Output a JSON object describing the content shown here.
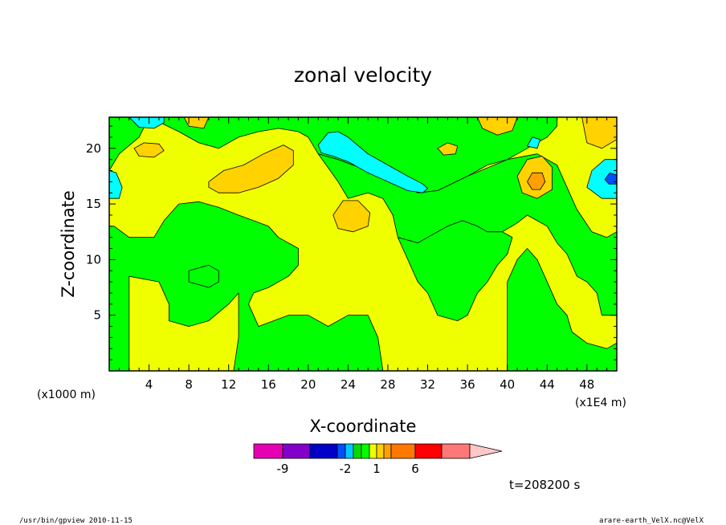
{
  "chart_data": {
    "type": "heatmap",
    "title": "zonal velocity",
    "xlabel": "X-coordinate",
    "ylabel": "Z-coordinate",
    "x_unit": "(x1E4 m)",
    "y_unit": "(x1000 m)",
    "xlim": [
      0,
      51
    ],
    "ylim": [
      0,
      22.8
    ],
    "x_ticks": [
      "4",
      "8",
      "12",
      "16",
      "20",
      "24",
      "28",
      "32",
      "36",
      "40",
      "44",
      "48"
    ],
    "y_ticks": [
      "5",
      "10",
      "15",
      "20"
    ],
    "x_tick_values": [
      4,
      8,
      12,
      16,
      20,
      24,
      28,
      32,
      36,
      40,
      44,
      48
    ],
    "y_tick_values": [
      5,
      10,
      15,
      20
    ],
    "time_label": "t=208200 s",
    "colorbar": {
      "labels": [
        "-9",
        "-2",
        "1",
        "6"
      ],
      "colors": [
        "#e600b4",
        "#8200c8",
        "#0000c8",
        "#0050ff",
        "#00c8ff",
        "#00dc00",
        "#00ff00",
        "#f0ff00",
        "#ffd200",
        "#ffa000",
        "#ff7800",
        "#ff0000",
        "#ff7878",
        "#ffc8c8"
      ]
    },
    "regions": [
      {
        "level": "yellow",
        "color": "#f0ff00",
        "points": [
          [
            0,
            0
          ],
          [
            51,
            0
          ],
          [
            51,
            22.8
          ],
          [
            0,
            22.8
          ]
        ]
      },
      {
        "level": "green",
        "color": "#00ff00",
        "points": [
          [
            2,
            8.5
          ],
          [
            5,
            8
          ],
          [
            6,
            6
          ],
          [
            6,
            4.5
          ],
          [
            8,
            4
          ],
          [
            10,
            4.5
          ],
          [
            12,
            6
          ],
          [
            13,
            7
          ],
          [
            13,
            3
          ],
          [
            12.5,
            0
          ],
          [
            27.5,
            0
          ],
          [
            27,
            3
          ],
          [
            26,
            5
          ],
          [
            24,
            5
          ],
          [
            22,
            4
          ],
          [
            20,
            5
          ],
          [
            18,
            5
          ],
          [
            15,
            4
          ],
          [
            14,
            6
          ],
          [
            14.5,
            7
          ],
          [
            16,
            7.5
          ],
          [
            18,
            8.5
          ],
          [
            19,
            9.5
          ],
          [
            19,
            11
          ],
          [
            17,
            12
          ],
          [
            16,
            13
          ],
          [
            13,
            14
          ],
          [
            11,
            14.7
          ],
          [
            9,
            15.2
          ],
          [
            7,
            15
          ],
          [
            5.5,
            13.5
          ],
          [
            4.5,
            12
          ],
          [
            2,
            12
          ],
          [
            0.5,
            13
          ],
          [
            0,
            13
          ],
          [
            0,
            18
          ],
          [
            1,
            19.5
          ],
          [
            3,
            21
          ],
          [
            4,
            22.8
          ],
          [
            0,
            22.8
          ],
          [
            0,
            0
          ],
          [
            2,
            0
          ]
        ]
      },
      {
        "level": "green",
        "color": "#00ff00",
        "points": [
          [
            4,
            22.8
          ],
          [
            7,
            21.5
          ],
          [
            9,
            20.5
          ],
          [
            11,
            20
          ],
          [
            13,
            21
          ],
          [
            15,
            21.5
          ],
          [
            17,
            21.8
          ],
          [
            19,
            21.5
          ],
          [
            20,
            21
          ],
          [
            21,
            19.5
          ],
          [
            23,
            19
          ],
          [
            26,
            18
          ],
          [
            29,
            17
          ],
          [
            31,
            16
          ],
          [
            33,
            16.2
          ],
          [
            36,
            17.5
          ],
          [
            38,
            18.5
          ],
          [
            40,
            19
          ],
          [
            42,
            20
          ],
          [
            44,
            21
          ],
          [
            45,
            22
          ],
          [
            45,
            22.8
          ]
        ]
      },
      {
        "level": "green",
        "color": "#00ff00",
        "points": [
          [
            21,
            19.5
          ],
          [
            23,
            17
          ],
          [
            24,
            15.5
          ],
          [
            26,
            16
          ],
          [
            27.5,
            15.5
          ],
          [
            28.5,
            14
          ],
          [
            29,
            12
          ],
          [
            31,
            11.5
          ],
          [
            32,
            12
          ],
          [
            34,
            13
          ],
          [
            35.5,
            13.5
          ],
          [
            37,
            13
          ],
          [
            38,
            12.5
          ],
          [
            39.5,
            12.5
          ],
          [
            41,
            13.3
          ],
          [
            42,
            14
          ],
          [
            44,
            13
          ],
          [
            45,
            11.5
          ],
          [
            46,
            10.5
          ],
          [
            47,
            8.5
          ],
          [
            48,
            8
          ],
          [
            49,
            7
          ],
          [
            49.5,
            5
          ],
          [
            51,
            5
          ],
          [
            51,
            12.5
          ],
          [
            50,
            12
          ],
          [
            48.5,
            12.5
          ],
          [
            47,
            14.5
          ],
          [
            46,
            16.5
          ],
          [
            45,
            18.5
          ],
          [
            43,
            19.5
          ],
          [
            40,
            19
          ],
          [
            36,
            17.5
          ],
          [
            33,
            16.2
          ],
          [
            31,
            16
          ],
          [
            29,
            17
          ],
          [
            26,
            18
          ],
          [
            23,
            19
          ]
        ]
      },
      {
        "level": "green",
        "color": "#00ff00",
        "points": [
          [
            29,
            12
          ],
          [
            31,
            8
          ],
          [
            32,
            7
          ],
          [
            33,
            5
          ],
          [
            35,
            4.5
          ],
          [
            36,
            5
          ],
          [
            37,
            7
          ],
          [
            38,
            8
          ],
          [
            39,
            9.5
          ],
          [
            40,
            10.5
          ],
          [
            40.5,
            12
          ],
          [
            39.5,
            12.5
          ],
          [
            38,
            12.5
          ],
          [
            37,
            13
          ],
          [
            35.5,
            13.5
          ],
          [
            34,
            13
          ],
          [
            32,
            12
          ],
          [
            31,
            11.5
          ]
        ]
      },
      {
        "level": "green",
        "color": "#00ff00",
        "points": [
          [
            40,
            0
          ],
          [
            40,
            8
          ],
          [
            41,
            10
          ],
          [
            42,
            11
          ],
          [
            43,
            10
          ],
          [
            44,
            8
          ],
          [
            45,
            6
          ],
          [
            46,
            5
          ],
          [
            46.5,
            3.5
          ],
          [
            48,
            2.5
          ],
          [
            50,
            2
          ],
          [
            51,
            2.5
          ],
          [
            51,
            0
          ]
        ]
      },
      {
        "level": "green",
        "color": "#00ff00",
        "points": [
          [
            8,
            8
          ],
          [
            10,
            7.5
          ],
          [
            11,
            8
          ],
          [
            11,
            9
          ],
          [
            10,
            9.5
          ],
          [
            8,
            9
          ]
        ]
      },
      {
        "level": "orange",
        "color": "#ffd200",
        "points": [
          [
            10,
            17
          ],
          [
            11.5,
            18
          ],
          [
            13.5,
            18.5
          ],
          [
            15.5,
            19.5
          ],
          [
            17.5,
            20.3
          ],
          [
            18.5,
            19.8
          ],
          [
            18.5,
            18.5
          ],
          [
            17,
            17.3
          ],
          [
            15,
            16.5
          ],
          [
            13,
            16
          ],
          [
            11,
            16
          ],
          [
            10,
            16.5
          ]
        ]
      },
      {
        "level": "orange",
        "color": "#ffd200",
        "points": [
          [
            22.5,
            14
          ],
          [
            23.5,
            15.3
          ],
          [
            25,
            15.3
          ],
          [
            26.2,
            14.2
          ],
          [
            26,
            13
          ],
          [
            24.5,
            12.5
          ],
          [
            23,
            12.8
          ]
        ]
      },
      {
        "level": "orange",
        "color": "#ffd200",
        "points": [
          [
            41,
            17.5
          ],
          [
            42,
            19
          ],
          [
            43.5,
            19.3
          ],
          [
            44.5,
            18.3
          ],
          [
            44.5,
            16.3
          ],
          [
            43,
            15.5
          ],
          [
            41.5,
            16
          ]
        ]
      },
      {
        "level": "orange",
        "color": "#ffd200",
        "points": [
          [
            2.5,
            20
          ],
          [
            3.5,
            20.5
          ],
          [
            5,
            20.4
          ],
          [
            5.5,
            19.8
          ],
          [
            4.5,
            19.2
          ],
          [
            3,
            19.3
          ]
        ]
      },
      {
        "level": "orange",
        "color": "#ffd200",
        "points": [
          [
            33,
            20
          ],
          [
            34,
            20.5
          ],
          [
            35,
            20.2
          ],
          [
            34.8,
            19.5
          ],
          [
            33.6,
            19.4
          ]
        ]
      },
      {
        "level": "orange",
        "color": "#ffd200",
        "points": [
          [
            37,
            22.8
          ],
          [
            37.5,
            21.8
          ],
          [
            39,
            21.2
          ],
          [
            40.5,
            21.6
          ],
          [
            41,
            22.8
          ]
        ]
      },
      {
        "level": "orange",
        "color": "#ffd200",
        "points": [
          [
            47.5,
            22.8
          ],
          [
            48,
            20.5
          ],
          [
            49.5,
            20
          ],
          [
            51,
            20.8
          ],
          [
            51,
            22.8
          ]
        ]
      },
      {
        "level": "orange",
        "color": "#ffd200",
        "points": [
          [
            7.5,
            22.8
          ],
          [
            8,
            22
          ],
          [
            9.5,
            21.8
          ],
          [
            10,
            22.8
          ]
        ]
      },
      {
        "level": "dark-orange",
        "color": "#ffa000",
        "points": [
          [
            42,
            17
          ],
          [
            42.5,
            17.8
          ],
          [
            43.5,
            17.8
          ],
          [
            43.8,
            17
          ],
          [
            43.3,
            16.3
          ],
          [
            42.5,
            16.3
          ]
        ]
      },
      {
        "level": "cyan",
        "color": "#00ffff",
        "points": [
          [
            21,
            20.3
          ],
          [
            22,
            21.4
          ],
          [
            23,
            21.5
          ],
          [
            24,
            21
          ],
          [
            26,
            19.5
          ],
          [
            28,
            18.5
          ],
          [
            30,
            17.5
          ],
          [
            31.5,
            16.8
          ],
          [
            32,
            16.4
          ],
          [
            31.5,
            16
          ],
          [
            30,
            16.2
          ],
          [
            28,
            17
          ],
          [
            26,
            17.8
          ],
          [
            24,
            18.8
          ],
          [
            22.5,
            19.3
          ],
          [
            21.3,
            19.6
          ]
        ]
      },
      {
        "level": "cyan",
        "color": "#00ffff",
        "points": [
          [
            2,
            22.8
          ],
          [
            3,
            21.9
          ],
          [
            4.5,
            21.8
          ],
          [
            5.5,
            22.3
          ],
          [
            5.5,
            22.8
          ]
        ]
      },
      {
        "level": "cyan",
        "color": "#00ffff",
        "points": [
          [
            0,
            18
          ],
          [
            0.7,
            17.8
          ],
          [
            1.3,
            16.5
          ],
          [
            1,
            15.5
          ],
          [
            0,
            15.5
          ]
        ]
      },
      {
        "level": "cyan",
        "color": "#00ffff",
        "points": [
          [
            48,
            16.5
          ],
          [
            48.5,
            18
          ],
          [
            49.8,
            19
          ],
          [
            51,
            19
          ],
          [
            51,
            15.5
          ],
          [
            49.5,
            15.5
          ]
        ]
      },
      {
        "level": "cyan",
        "color": "#00ffff",
        "points": [
          [
            42,
            20.2
          ],
          [
            42.5,
            21
          ],
          [
            43.3,
            20.8
          ],
          [
            43,
            20
          ]
        ]
      },
      {
        "level": "blue",
        "color": "#0050ff",
        "points": [
          [
            49.8,
            17.2
          ],
          [
            50.3,
            17.8
          ],
          [
            51,
            17.6
          ],
          [
            51,
            16.8
          ],
          [
            50.2,
            16.8
          ]
        ]
      }
    ]
  }
}
